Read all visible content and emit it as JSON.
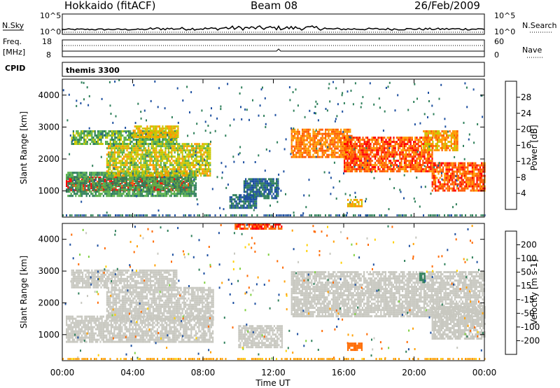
{
  "header": {
    "title": "Hokkaido (fitACF)",
    "beam": "Beam 08",
    "date": "26/Feb/2009"
  },
  "noise_panel": {
    "left_label": "N.Sky",
    "right_label": "N.Search",
    "left_ticks": [
      "10^5",
      "10^0"
    ],
    "right_ticks": [
      "10^5",
      "10^0"
    ]
  },
  "freq_panel": {
    "left_label_1": "Freq.",
    "left_label_2": "[MHz]",
    "right_label": "Nave",
    "left_ticks": [
      "18",
      "8"
    ],
    "right_ticks": [
      "60",
      "0"
    ]
  },
  "cpid_panel": {
    "label": "CPID",
    "value": "themis 3300"
  },
  "x_axis": {
    "label": "Time UT",
    "ticks": [
      "00:00",
      "04:00",
      "08:00",
      "12:00",
      "16:00",
      "20:00",
      "00:00"
    ]
  },
  "colors": {
    "power": [
      "#0000ff",
      "#1d4fa0",
      "#2e7f5a",
      "#58b04a",
      "#c8c800",
      "#ff9a00",
      "#ff5a00",
      "#ff0000"
    ],
    "velocity": [
      "#ff0000",
      "#ff6a00",
      "#ffa000",
      "#ffd000",
      "#c8c8c0",
      "#7fd040",
      "#2e7f5a",
      "#1d4fa0",
      "#0000ff"
    ]
  },
  "chart_data": [
    {
      "type": "heatmap",
      "panel": "power",
      "title": "",
      "xlabel": "",
      "ylabel": "Slant Range [km]",
      "x": [
        "00:00",
        "04:00",
        "08:00",
        "12:00",
        "16:00",
        "20:00",
        "00:00"
      ],
      "yticks": [
        "1000",
        "2000",
        "3000",
        "4000"
      ],
      "ylim": [
        180,
        4500
      ],
      "colorbar": {
        "label": "Power [dB]",
        "ticks": [
          "4",
          "8",
          "12",
          "16",
          "20",
          "24",
          "28"
        ],
        "range": [
          0,
          32
        ]
      },
      "regions": [
        {
          "t0": 0.2,
          "t1": 7.3,
          "r0": 1050,
          "r1": 1450,
          "value": 30
        },
        {
          "t0": 0.2,
          "t1": 7.6,
          "r0": 850,
          "r1": 1600,
          "value": 12
        },
        {
          "t0": 2.5,
          "t1": 8.4,
          "r0": 1500,
          "r1": 2500,
          "value": 18
        },
        {
          "t0": 0.5,
          "t1": 6.5,
          "r0": 2500,
          "r1": 2900,
          "value": 14
        },
        {
          "t0": 4.0,
          "t1": 6.6,
          "r0": 2700,
          "r1": 3050,
          "value": 20
        },
        {
          "t0": 13.0,
          "t1": 16.5,
          "r0": 2050,
          "r1": 2950,
          "value": 24
        },
        {
          "t0": 16.0,
          "t1": 21.0,
          "r0": 1600,
          "r1": 2700,
          "value": 26
        },
        {
          "t0": 21.0,
          "t1": 24.0,
          "r0": 1000,
          "r1": 1900,
          "value": 26
        },
        {
          "t0": 20.5,
          "t1": 22.5,
          "r0": 2300,
          "r1": 2900,
          "value": 22
        },
        {
          "t0": 10.3,
          "t1": 12.3,
          "r0": 800,
          "r1": 1400,
          "value": 8
        },
        {
          "t0": 9.5,
          "t1": 11.0,
          "r0": 500,
          "r1": 900,
          "value": 8
        },
        {
          "t0": 16.2,
          "t1": 17.0,
          "r0": 550,
          "r1": 750,
          "value": 20
        }
      ]
    },
    {
      "type": "heatmap",
      "panel": "velocity",
      "title": "",
      "xlabel": "Time UT",
      "ylabel": "Slant Range [km]",
      "x": [
        "00:00",
        "04:00",
        "08:00",
        "12:00",
        "16:00",
        "20:00",
        "00:00"
      ],
      "yticks": [
        "1000",
        "2000",
        "3000",
        "4000"
      ],
      "ylim": [
        180,
        4500
      ],
      "colorbar": {
        "label": "Velocity [m s-1]",
        "ticks": [
          "200",
          "100",
          "50",
          "15",
          "-15",
          "-50",
          "-100",
          "-200"
        ],
        "range": [
          -250,
          250
        ]
      },
      "regions": [
        {
          "t0": 0.2,
          "t1": 8.6,
          "r0": 800,
          "r1": 1600,
          "value": 0
        },
        {
          "t0": 2.5,
          "t1": 8.6,
          "r0": 1500,
          "r1": 2500,
          "value": 0
        },
        {
          "t0": 0.5,
          "t1": 6.5,
          "r0": 2500,
          "r1": 3050,
          "value": 0
        },
        {
          "t0": 13.0,
          "t1": 24.0,
          "r0": 1600,
          "r1": 3000,
          "value": 0
        },
        {
          "t0": 21.0,
          "t1": 24.0,
          "r0": 900,
          "r1": 1900,
          "value": 0
        },
        {
          "t0": 10.0,
          "t1": 12.5,
          "r0": 600,
          "r1": 1300,
          "value": 0
        },
        {
          "t0": 16.2,
          "t1": 17.0,
          "r0": 550,
          "r1": 750,
          "value": -120
        },
        {
          "t0": 20.3,
          "t1": 20.6,
          "r0": 2650,
          "r1": 2950,
          "value": 60
        },
        {
          "t0": 9.8,
          "t1": 12.5,
          "r0": 4350,
          "r1": 4500,
          "value": -200
        }
      ]
    }
  ]
}
